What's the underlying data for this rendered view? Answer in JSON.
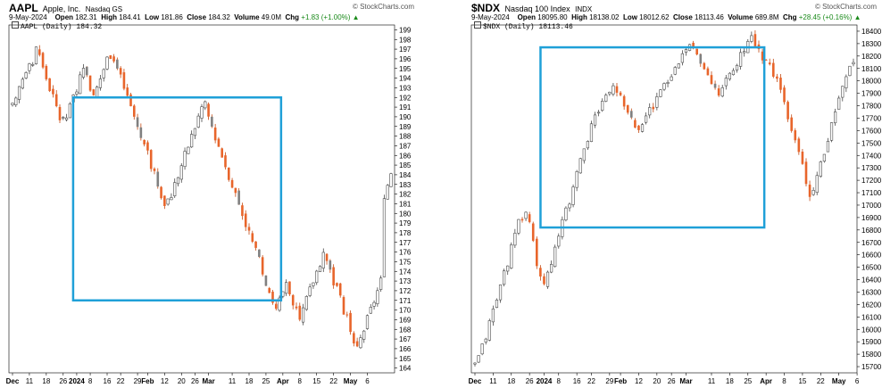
{
  "charts": [
    {
      "symbol": "AAPL",
      "name": "Apple, Inc.",
      "exchange": "Nasdaq GS",
      "date": "9-May-2024",
      "open_label": "Open",
      "open": "182.31",
      "high_label": "High",
      "high": "184.41",
      "low_label": "Low",
      "low": "181.86",
      "close_label": "Close",
      "close": "184.32",
      "volume_label": "Volume",
      "volume": "49.0M",
      "chg_label": "Chg",
      "chg": "+1.83 (+1.00%)",
      "legend": "AAPL (Daily) 184.32",
      "watermark": "© StockCharts.com"
    },
    {
      "symbol": "$NDX",
      "name": "Nasdaq 100 Index",
      "exchange": "INDX",
      "date": "9-May-2024",
      "open_label": "Open",
      "open": "18095.80",
      "high_label": "High",
      "high": "18138.02",
      "low_label": "Low",
      "low": "18012.62",
      "close_label": "Close",
      "close": "18113.46",
      "volume_label": "Volume",
      "volume": "689.8M",
      "chg_label": "Chg",
      "chg": "+28.45 (+0.16%)",
      "legend": "$NDX (Daily) 18113.46",
      "watermark": "© StockCharts.com"
    }
  ],
  "chart_data": [
    {
      "type": "candlestick",
      "series_name": "AAPL (Daily)",
      "y_axis_ticks": [
        164,
        165,
        166,
        167,
        168,
        169,
        170,
        171,
        172,
        173,
        174,
        175,
        176,
        177,
        178,
        179,
        180,
        181,
        182,
        183,
        184,
        185,
        186,
        187,
        188,
        189,
        190,
        191,
        192,
        193,
        194,
        195,
        196,
        197,
        198,
        199
      ],
      "ylim": [
        163.5,
        199.5
      ],
      "x_tick_labels": [
        "Dec",
        "11",
        "18",
        "26",
        "2024",
        "8",
        "16",
        "22",
        "29",
        "Feb",
        "12",
        "20",
        "26",
        "Mar",
        "11",
        "18",
        "25",
        "Apr",
        "8",
        "15",
        "22",
        "May",
        "6"
      ],
      "x_tick_index": [
        0,
        5,
        10,
        15,
        19,
        23,
        28,
        32,
        37,
        40,
        45,
        50,
        54,
        58,
        65,
        70,
        75,
        80,
        85,
        90,
        95,
        100,
        105
      ],
      "close_approx": [
        191,
        191.5,
        193,
        194,
        195,
        196,
        195.5,
        197,
        196.5,
        195,
        194,
        193,
        192,
        191,
        190,
        189.5,
        190,
        191,
        192,
        193,
        194,
        194.5,
        194,
        193,
        192.5,
        193,
        194,
        195,
        196,
        196.5,
        196,
        195,
        194,
        193,
        192,
        191,
        190,
        189,
        188,
        187,
        186,
        185,
        184,
        183,
        182,
        181,
        181.5,
        182,
        183,
        184,
        185,
        186,
        187,
        188,
        189,
        190,
        191,
        191.5,
        190,
        189,
        188,
        187,
        186,
        185,
        184,
        183,
        182,
        181,
        180,
        179,
        178,
        177,
        176,
        175,
        174,
        173,
        172,
        171,
        170,
        171,
        172,
        173,
        172,
        171,
        170,
        169,
        170,
        171,
        172,
        173,
        174,
        175,
        176,
        175,
        174,
        173,
        172,
        171,
        170,
        169,
        168,
        167,
        166,
        167,
        168,
        169,
        170,
        171,
        172,
        173,
        181,
        183,
        184.32
      ],
      "highlight_box": {
        "x_from": "2024",
        "x_to": "Apr",
        "y_from": 171,
        "y_to": 192
      }
    },
    {
      "type": "candlestick",
      "series_name": "$NDX (Daily)",
      "y_axis_ticks": [
        15700,
        15800,
        15900,
        16000,
        16100,
        16200,
        16300,
        16400,
        16500,
        16600,
        16700,
        16800,
        16900,
        17000,
        17100,
        17200,
        17300,
        17400,
        17500,
        17600,
        17700,
        17800,
        17900,
        18000,
        18100,
        18200,
        18300,
        18400
      ],
      "ylim": [
        15650,
        18450
      ],
      "x_tick_labels": [
        "Dec",
        "11",
        "18",
        "26",
        "2024",
        "8",
        "16",
        "22",
        "29",
        "Feb",
        "12",
        "20",
        "26",
        "Mar",
        "11",
        "18",
        "25",
        "Apr",
        "8",
        "15",
        "22",
        "May",
        "6"
      ],
      "x_tick_index": [
        0,
        5,
        10,
        15,
        19,
        23,
        28,
        32,
        37,
        40,
        45,
        50,
        54,
        58,
        65,
        70,
        75,
        80,
        85,
        90,
        95,
        100,
        105
      ],
      "close_approx": [
        15700,
        15780,
        15850,
        15950,
        16050,
        16150,
        16250,
        16350,
        16450,
        16550,
        16650,
        16750,
        16850,
        16900,
        16950,
        16850,
        16700,
        16500,
        16400,
        16350,
        16450,
        16550,
        16650,
        16750,
        16850,
        16950,
        17050,
        17150,
        17250,
        17350,
        17450,
        17550,
        17650,
        17700,
        17750,
        17800,
        17850,
        17900,
        17950,
        17900,
        17850,
        17800,
        17750,
        17700,
        17650,
        17600,
        17650,
        17700,
        17750,
        17800,
        17850,
        17900,
        17950,
        18000,
        18050,
        18100,
        18150,
        18200,
        18250,
        18300,
        18250,
        18200,
        18150,
        18100,
        18050,
        18000,
        17950,
        17900,
        17950,
        18000,
        18050,
        18100,
        18150,
        18200,
        18250,
        18300,
        18350,
        18300,
        18250,
        18200,
        18150,
        18100,
        18050,
        18000,
        17900,
        17800,
        17700,
        17600,
        17500,
        17400,
        17300,
        17200,
        17100,
        17150,
        17250,
        17350,
        17450,
        17550,
        17650,
        17750,
        17850,
        17950,
        18050,
        18100,
        18113.46
      ],
      "highlight_box": {
        "x_from": "2024",
        "x_to": "Apr",
        "y_from": 16820,
        "y_to": 18270
      }
    }
  ],
  "colors": {
    "up": "#ffffff",
    "up_stroke": "#4a4a4a",
    "down": "#e8652b",
    "down_stroke": "#c24a14",
    "gray_down": "#808080",
    "box": "#1fa0d8",
    "grid": "#e6e6e6",
    "axis": "#000000"
  }
}
